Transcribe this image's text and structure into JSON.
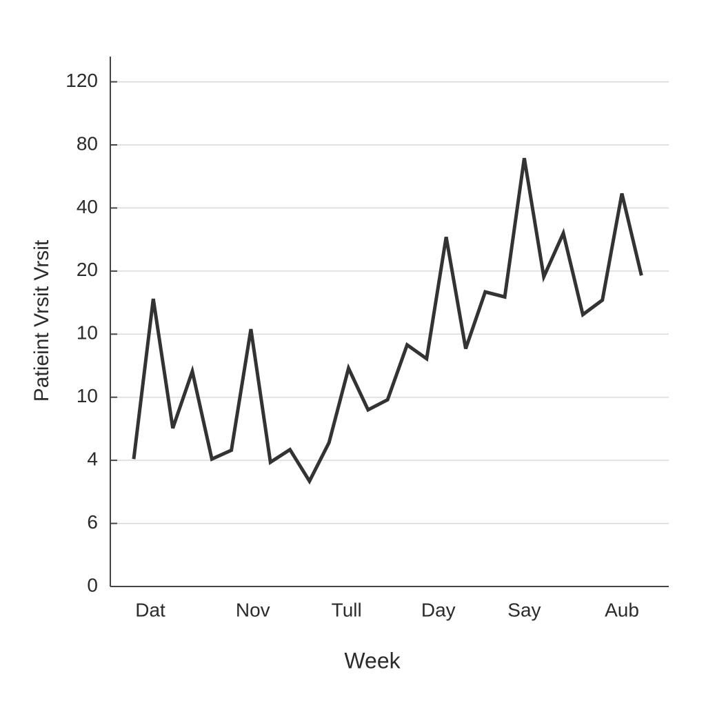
{
  "chart_data": {
    "type": "line",
    "x_label": "Week",
    "y_label": "Patieint Vrsit Vrsit",
    "x": [
      0,
      1,
      2,
      3,
      4,
      5,
      6,
      7,
      8,
      9,
      10,
      11,
      12,
      13,
      14,
      15,
      16,
      17,
      18,
      19,
      20,
      21,
      22,
      23,
      24,
      25,
      26
    ],
    "series": [
      {
        "color": "#333333",
        "values": [
          2.02,
          4.56,
          2.51,
          3.41,
          2.02,
          2.16,
          4.08,
          1.97,
          2.17,
          1.67,
          2.28,
          3.46,
          2.8,
          2.96,
          3.83,
          3.61,
          5.54,
          3.77,
          4.67,
          4.59,
          6.79,
          4.91,
          5.6,
          4.31,
          4.54,
          6.23,
          4.93
        ]
      }
    ],
    "xlim": [
      -1.2,
      27.4
    ],
    "xticks": [
      {
        "value": 0.85,
        "label": "Dat"
      },
      {
        "value": 6.1,
        "label": "Nov"
      },
      {
        "value": 10.9,
        "label": "Tull"
      },
      {
        "value": 15.6,
        "label": "Day"
      },
      {
        "value": 20,
        "label": "Say"
      },
      {
        "value": 25,
        "label": "Aub"
      }
    ],
    "ylim": [
      0,
      8.4
    ],
    "yticks": [
      {
        "value": 0,
        "label": "0"
      },
      {
        "value": 1,
        "label": "6"
      },
      {
        "value": 2,
        "label": "4"
      },
      {
        "value": 3,
        "label": "10"
      },
      {
        "value": 4,
        "label": "10"
      },
      {
        "value": 5,
        "label": "20"
      },
      {
        "value": 6,
        "label": "40"
      },
      {
        "value": 7,
        "label": "80"
      },
      {
        "value": 8,
        "label": "120"
      }
    ],
    "grid": true
  }
}
